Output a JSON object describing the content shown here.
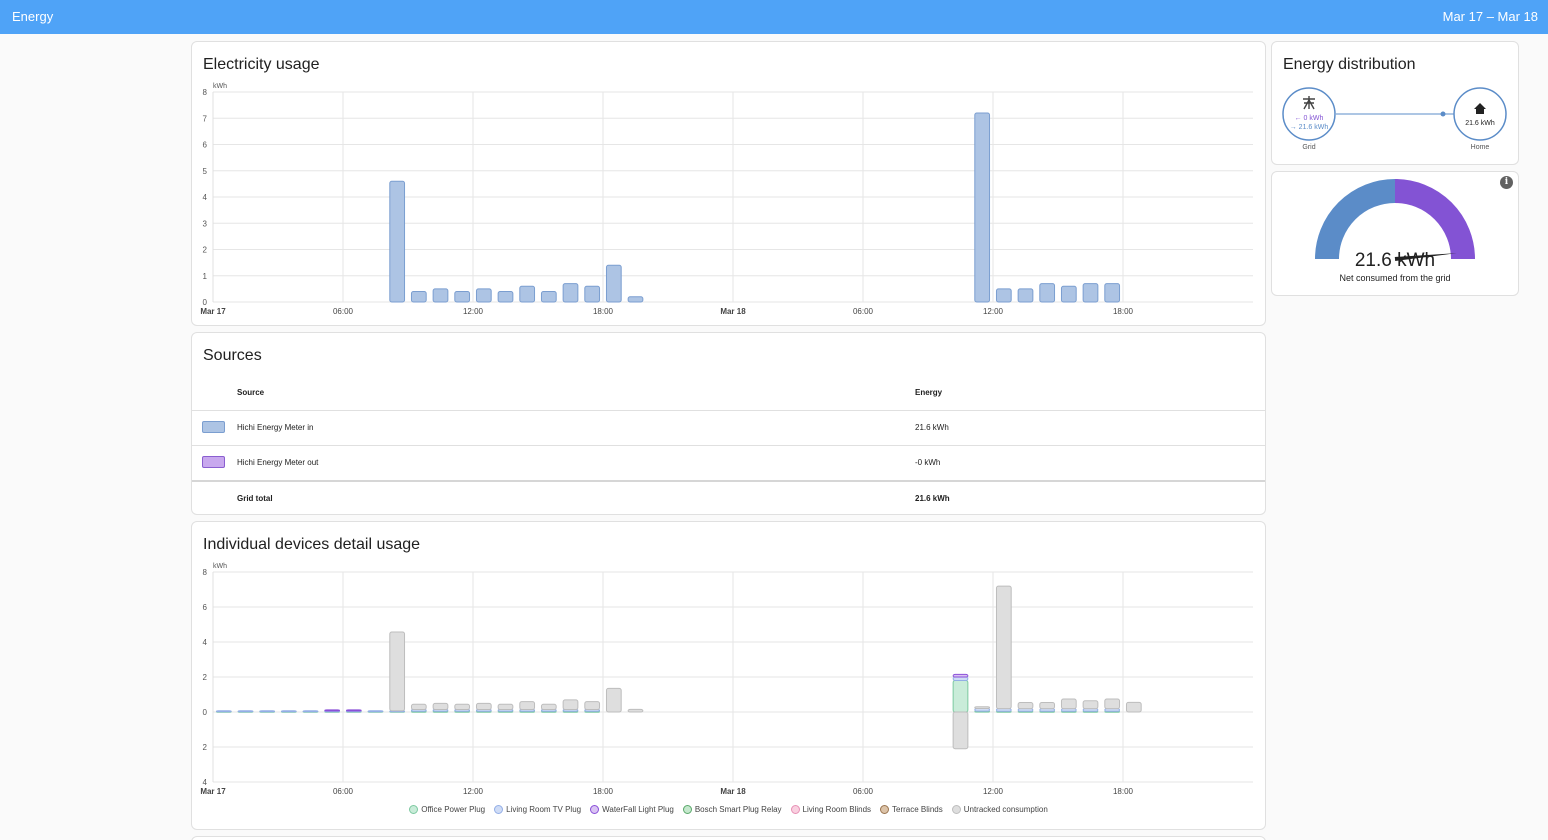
{
  "topbar": {
    "title": "Energy",
    "date_range": "Mar 17 – Mar 18"
  },
  "colors": {
    "header": "#4fa3f7",
    "grid_in": "#5b8cc8",
    "grid_out": "#8353d4",
    "bar_fill": "#adc4e4",
    "bar_stroke": "#7b9ed0"
  },
  "usage_card": {
    "title": "Electricity usage"
  },
  "sources_card": {
    "title": "Sources",
    "headers": {
      "source": "Source",
      "energy": "Energy"
    },
    "rows": [
      {
        "name": "Hichi Energy Meter in",
        "value": "21.6 kWh",
        "swatch": "#adc4e4",
        "border": "#7b9ed0"
      },
      {
        "name": "Hichi Energy Meter out",
        "value": "-0 kWh",
        "swatch": "#c8a8ee",
        "border": "#8a5ed0"
      }
    ],
    "total": {
      "label": "Grid total",
      "value": "21.6 kWh"
    }
  },
  "devices_card": {
    "title": "Individual devices detail usage"
  },
  "distribution": {
    "title": "Energy distribution",
    "grid": {
      "label": "Grid",
      "in": "← 0 kWh",
      "out": "→ 21.6 kWh",
      "icon": "transmission-tower-icon"
    },
    "home": {
      "label": "Home",
      "value": "21.6 kWh",
      "icon": "home-icon"
    }
  },
  "gauge": {
    "value": "21.6 kWh",
    "label": "Net consumed from the grid",
    "fraction": 0.97
  },
  "chart_data": [
    {
      "type": "bar",
      "unit_label": "kWh",
      "ylim": [
        0,
        8
      ],
      "yticks": [
        0,
        1,
        2,
        3,
        4,
        5,
        6,
        7,
        8
      ],
      "xticks": [
        {
          "h": 0,
          "label": "Mar 17",
          "bold": true
        },
        {
          "h": 6,
          "label": "06:00"
        },
        {
          "h": 12,
          "label": "12:00"
        },
        {
          "h": 18,
          "label": "18:00"
        },
        {
          "h": 24,
          "label": "Mar 18",
          "bold": true
        },
        {
          "h": 30,
          "label": "06:00"
        },
        {
          "h": 36,
          "label": "12:00"
        },
        {
          "h": 42,
          "label": "18:00"
        }
      ],
      "series": [
        {
          "name": "Hichi Energy Meter in",
          "points": [
            [
              8,
              4.6
            ],
            [
              9,
              0.4
            ],
            [
              10,
              0.5
            ],
            [
              11,
              0.4
            ],
            [
              12,
              0.5
            ],
            [
              13,
              0.4
            ],
            [
              14,
              0.6
            ],
            [
              15,
              0.4
            ],
            [
              16,
              0.7
            ],
            [
              17,
              0.6
            ],
            [
              18,
              1.4
            ],
            [
              19,
              0.2
            ],
            [
              35,
              7.2
            ],
            [
              36,
              0.5
            ],
            [
              37,
              0.5
            ],
            [
              38,
              0.7
            ],
            [
              39,
              0.6
            ],
            [
              40,
              0.7
            ],
            [
              41,
              0.7
            ]
          ]
        }
      ]
    },
    {
      "type": "bar",
      "unit_label": "kWh",
      "ylim": [
        -4,
        8
      ],
      "yticks": [
        {
          "v": 8,
          "label": "8"
        },
        {
          "v": 6,
          "label": "6"
        },
        {
          "v": 4,
          "label": "4"
        },
        {
          "v": 2,
          "label": "2"
        },
        {
          "v": 0,
          "label": "0"
        },
        {
          "v": -2,
          "label": "2"
        },
        {
          "v": -4,
          "label": "4"
        }
      ],
      "xticks": [
        {
          "h": 0,
          "label": "Mar 17",
          "bold": true
        },
        {
          "h": 6,
          "label": "06:00"
        },
        {
          "h": 12,
          "label": "12:00"
        },
        {
          "h": 18,
          "label": "18:00"
        },
        {
          "h": 24,
          "label": "Mar 18",
          "bold": true
        },
        {
          "h": 30,
          "label": "06:00"
        },
        {
          "h": 36,
          "label": "12:00"
        },
        {
          "h": 42,
          "label": "18:00"
        }
      ],
      "legend": [
        {
          "name": "Office Power Plug",
          "fill": "#c9ecd9",
          "stroke": "#7cc9a0"
        },
        {
          "name": "Living Room TV Plug",
          "fill": "#cfdcf6",
          "stroke": "#93aee6"
        },
        {
          "name": "WaterFall Light Plug",
          "fill": "#d9c3f3",
          "stroke": "#8a4fd8"
        },
        {
          "name": "Bosch Smart Plug Relay",
          "fill": "#c5e8cd",
          "stroke": "#5aa86a"
        },
        {
          "name": "Living Room Blinds",
          "fill": "#f9d0e0",
          "stroke": "#e790b5"
        },
        {
          "name": "Terrace Blinds",
          "fill": "#dcc3a8",
          "stroke": "#9a7550"
        },
        {
          "name": "Untracked consumption",
          "fill": "#dedede",
          "stroke": "#bdbdbd"
        }
      ],
      "series": [
        {
          "name": "Office Power Plug",
          "points": [
            [
              0,
              0.04
            ],
            [
              1,
              0.04
            ],
            [
              2,
              0.04
            ],
            [
              3,
              0.04
            ],
            [
              4,
              0.04
            ],
            [
              5,
              0.04
            ],
            [
              6,
              0.04
            ],
            [
              7,
              0.04
            ],
            [
              8,
              0.04
            ],
            [
              9,
              0.04
            ],
            [
              10,
              0.04
            ],
            [
              11,
              0.04
            ],
            [
              12,
              0.04
            ],
            [
              13,
              0.04
            ],
            [
              14,
              0.04
            ],
            [
              15,
              0.04
            ],
            [
              16,
              0.04
            ],
            [
              17,
              0.04
            ],
            [
              34,
              1.8
            ],
            [
              35,
              0.05
            ],
            [
              36,
              0.04
            ],
            [
              37,
              0.04
            ],
            [
              38,
              0.04
            ],
            [
              39,
              0.04
            ],
            [
              40,
              0.04
            ],
            [
              41,
              0.04
            ]
          ]
        },
        {
          "name": "Living Room TV Plug",
          "points": [
            [
              0,
              0.03
            ],
            [
              1,
              0.03
            ],
            [
              2,
              0.03
            ],
            [
              3,
              0.03
            ],
            [
              4,
              0.03
            ],
            [
              5,
              0.03
            ],
            [
              6,
              0.03
            ],
            [
              7,
              0.03
            ],
            [
              8,
              0.03
            ],
            [
              9,
              0.1
            ],
            [
              10,
              0.1
            ],
            [
              11,
              0.1
            ],
            [
              12,
              0.1
            ],
            [
              13,
              0.1
            ],
            [
              14,
              0.1
            ],
            [
              15,
              0.1
            ],
            [
              16,
              0.1
            ],
            [
              17,
              0.1
            ],
            [
              34,
              0.2
            ],
            [
              35,
              0.15
            ],
            [
              36,
              0.15
            ],
            [
              37,
              0.15
            ],
            [
              38,
              0.15
            ],
            [
              39,
              0.15
            ],
            [
              40,
              0.15
            ],
            [
              41,
              0.15
            ]
          ]
        },
        {
          "name": "WaterFall Light Plug",
          "points": [
            [
              5,
              0.05
            ],
            [
              6,
              0.05
            ],
            [
              34,
              0.15
            ]
          ]
        },
        {
          "name": "Untracked consumption",
          "points": [
            [
              8,
              4.5
            ],
            [
              9,
              0.3
            ],
            [
              10,
              0.35
            ],
            [
              11,
              0.3
            ],
            [
              12,
              0.35
            ],
            [
              13,
              0.3
            ],
            [
              14,
              0.45
            ],
            [
              15,
              0.3
            ],
            [
              16,
              0.55
            ],
            [
              17,
              0.45
            ],
            [
              18,
              1.35
            ],
            [
              19,
              0.15
            ],
            [
              34,
              -2.1
            ],
            [
              35,
              0.1
            ],
            [
              36,
              7.0
            ],
            [
              37,
              0.35
            ],
            [
              38,
              0.35
            ],
            [
              39,
              0.55
            ],
            [
              40,
              0.45
            ],
            [
              41,
              0.55
            ],
            [
              42,
              0.55
            ]
          ]
        }
      ]
    }
  ]
}
